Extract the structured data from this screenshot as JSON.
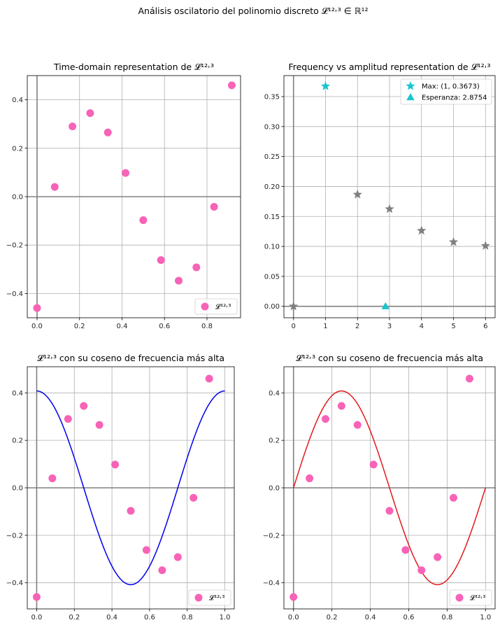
{
  "figure": {
    "suptitle": "Análisis oscilatorio del polinomio discreto 𝓛¹²˒³ ∈ ℝ¹²"
  },
  "colors": {
    "points": "#f763b7",
    "stars": "#808080",
    "max_marker": "#19c6cd",
    "mean_marker": "#19c6cd",
    "cos_blue": "#0000ee",
    "cos_red": "#e31a1c",
    "axis_line": "#808080",
    "grid": "#b0b0b0"
  },
  "chart_data": [
    {
      "id": "time",
      "type": "scatter",
      "title": "Time-domain representation de 𝓛¹²˒³",
      "xlim": [
        -0.046,
        0.958
      ],
      "ylim": [
        -0.5,
        0.5
      ],
      "xticks": [
        0.0,
        0.2,
        0.4,
        0.6,
        0.8
      ],
      "yticks": [
        -0.4,
        -0.2,
        0.0,
        0.2,
        0.4
      ],
      "xtick_labels": [
        "0.0",
        "0.2",
        "0.4",
        "0.6",
        "0.8"
      ],
      "ytick_labels": [
        "−0.4",
        "−0.2",
        "0.0",
        "0.2",
        "0.4"
      ],
      "grid": true,
      "legend": {
        "placement": "lower-right",
        "label": "𝓛¹²˒³"
      },
      "series": [
        {
          "name": "𝓛¹²˒³",
          "x": [
            0.0,
            0.0833,
            0.1667,
            0.25,
            0.3333,
            0.4167,
            0.5,
            0.5833,
            0.6667,
            0.75,
            0.8333,
            0.9167
          ],
          "y": [
            -0.46,
            0.04,
            0.29,
            0.345,
            0.265,
            0.098,
            -0.097,
            -0.262,
            -0.347,
            -0.292,
            -0.042,
            0.46
          ]
        }
      ]
    },
    {
      "id": "freq",
      "type": "scatter",
      "title": "Frequency vs amplitud representation de 𝓛¹²˒³",
      "xlim": [
        -0.3,
        6.3
      ],
      "ylim": [
        -0.019,
        0.385
      ],
      "xticks": [
        0,
        1,
        2,
        3,
        4,
        5,
        6
      ],
      "yticks": [
        0.0,
        0.05,
        0.1,
        0.15,
        0.2,
        0.25,
        0.3,
        0.35
      ],
      "xtick_labels": [
        "0",
        "1",
        "2",
        "3",
        "4",
        "5",
        "6"
      ],
      "ytick_labels": [
        "0.00",
        "0.05",
        "0.10",
        "0.15",
        "0.20",
        "0.25",
        "0.30",
        "0.35"
      ],
      "grid": true,
      "legend": {
        "placement": "top-right"
      },
      "series": [
        {
          "marker": "star",
          "x": [
            0,
            2,
            3,
            4,
            5,
            6
          ],
          "y": [
            0.0,
            0.1866,
            0.1624,
            0.1263,
            0.1073,
            0.101
          ]
        },
        {
          "name": "Max: (1, 0.3673)",
          "marker": "star",
          "x": [
            1
          ],
          "y": [
            0.3673
          ]
        },
        {
          "name": "Esperanza: 2.8754",
          "marker": "triangle",
          "x": [
            2.8754
          ],
          "y": [
            0.0
          ]
        }
      ]
    },
    {
      "id": "cos1",
      "type": "line",
      "title": "𝓛¹²˒³ con su coseno de frecuencia más alta",
      "xlim": [
        -0.05,
        1.05
      ],
      "ylim": [
        -0.51,
        0.51
      ],
      "xticks": [
        0.0,
        0.2,
        0.4,
        0.6,
        0.8,
        1.0
      ],
      "yticks": [
        -0.4,
        -0.2,
        0.0,
        0.2,
        0.4
      ],
      "xtick_labels": [
        "0.0",
        "0.2",
        "0.4",
        "0.6",
        "0.8",
        "1.0"
      ],
      "ytick_labels": [
        "−0.4",
        "−0.2",
        "0.0",
        "0.2",
        "0.4"
      ],
      "grid": true,
      "legend": {
        "placement": "lower-right",
        "label": "𝓛¹²˒³"
      },
      "curve": {
        "function": "cos",
        "amplitude": 0.408,
        "frequency": 1,
        "x_range": [
          0,
          1
        ]
      },
      "series": [
        {
          "name": "𝓛¹²˒³",
          "x": [
            0.0,
            0.0833,
            0.1667,
            0.25,
            0.3333,
            0.4167,
            0.5,
            0.5833,
            0.6667,
            0.75,
            0.8333,
            0.9167
          ],
          "y": [
            -0.46,
            0.04,
            0.29,
            0.345,
            0.265,
            0.098,
            -0.097,
            -0.262,
            -0.347,
            -0.292,
            -0.042,
            0.46
          ]
        }
      ]
    },
    {
      "id": "cos2",
      "type": "line",
      "title": "𝓛¹²˒³ con su coseno de frecuencia más alta",
      "xlim": [
        -0.05,
        1.05
      ],
      "ylim": [
        -0.51,
        0.51
      ],
      "xticks": [
        0.0,
        0.2,
        0.4,
        0.6,
        0.8,
        1.0
      ],
      "yticks": [
        -0.4,
        -0.2,
        0.0,
        0.2,
        0.4
      ],
      "xtick_labels": [
        "0.0",
        "0.2",
        "0.4",
        "0.6",
        "0.8",
        "1.0"
      ],
      "ytick_labels": [
        "−0.4",
        "−0.2",
        "0.0",
        "0.2",
        "0.4"
      ],
      "grid": true,
      "legend": {
        "placement": "lower-right",
        "label": "𝓛¹²˒³"
      },
      "curve": {
        "function": "sin",
        "amplitude": 0.408,
        "frequency": 1,
        "x_range": [
          0,
          1
        ]
      },
      "series": [
        {
          "name": "𝓛¹²˒³",
          "x": [
            0.0,
            0.0833,
            0.1667,
            0.25,
            0.3333,
            0.4167,
            0.5,
            0.5833,
            0.6667,
            0.75,
            0.8333,
            0.9167
          ],
          "y": [
            -0.46,
            0.04,
            0.29,
            0.345,
            0.265,
            0.098,
            -0.097,
            -0.262,
            -0.347,
            -0.292,
            -0.042,
            0.46
          ]
        }
      ]
    }
  ]
}
